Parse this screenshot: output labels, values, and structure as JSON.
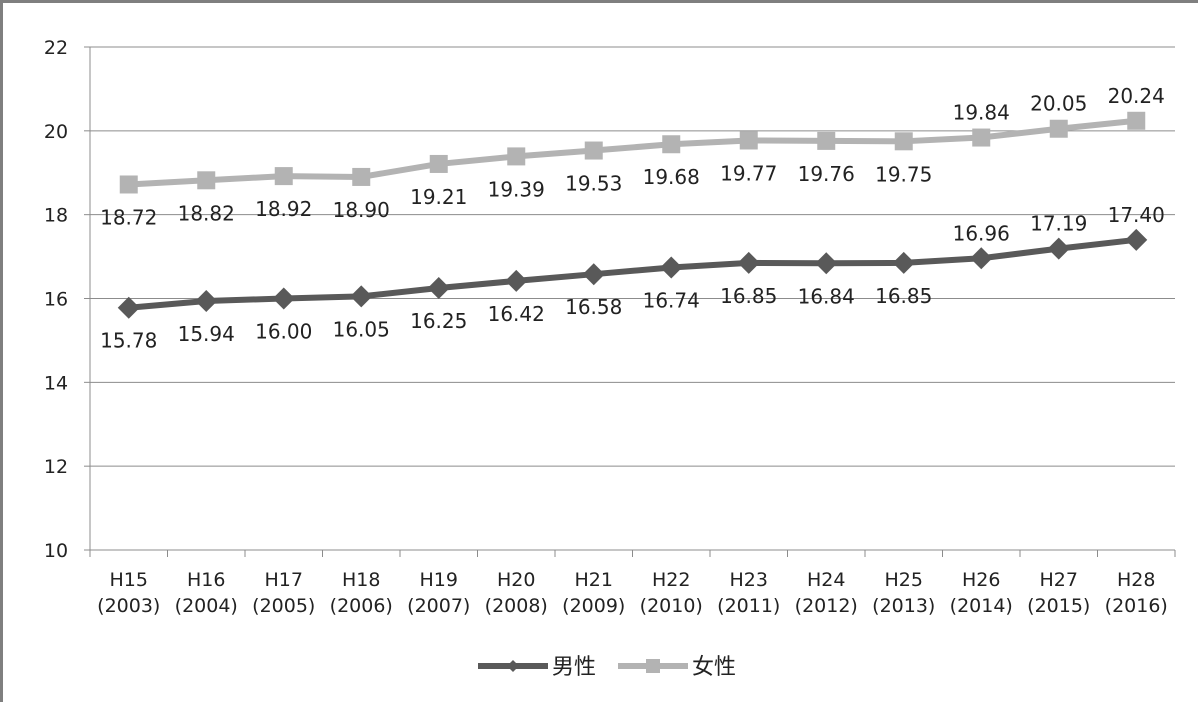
{
  "chart_data": {
    "type": "line",
    "categories": [
      [
        "H15",
        "(2003)"
      ],
      [
        "H16",
        "(2004)"
      ],
      [
        "H17",
        "(2005)"
      ],
      [
        "H18",
        "(2006)"
      ],
      [
        "H19",
        "(2007)"
      ],
      [
        "H20",
        "(2008)"
      ],
      [
        "H21",
        "(2009)"
      ],
      [
        "H22",
        "(2010)"
      ],
      [
        "H23",
        "(2011)"
      ],
      [
        "H24",
        "(2012)"
      ],
      [
        "H25",
        "(2013)"
      ],
      [
        "H26",
        "(2014)"
      ],
      [
        "H27",
        "(2015)"
      ],
      [
        "H28",
        "(2016)"
      ]
    ],
    "ylim": [
      10,
      22
    ],
    "yticks": [
      10,
      12,
      14,
      16,
      18,
      20,
      22
    ],
    "grid": true,
    "legend_position": "bottom",
    "series": [
      {
        "name": "男性",
        "marker": "diamond",
        "color": "#595959",
        "values": [
          15.78,
          15.94,
          16.0,
          16.05,
          16.25,
          16.42,
          16.58,
          16.74,
          16.85,
          16.84,
          16.85,
          16.96,
          17.19,
          17.4
        ],
        "labels": [
          "15.78",
          "15.94",
          "16.00",
          "16.05",
          "16.25",
          "16.42",
          "16.58",
          "16.74",
          "16.85",
          "16.84",
          "16.85",
          "16.96",
          "17.19",
          "17.40"
        ]
      },
      {
        "name": "女性",
        "marker": "square",
        "color": "#b3b3b3",
        "values": [
          18.72,
          18.82,
          18.92,
          18.9,
          19.21,
          19.39,
          19.53,
          19.68,
          19.77,
          19.76,
          19.75,
          19.84,
          20.05,
          20.24
        ],
        "labels": [
          "18.72",
          "18.82",
          "18.92",
          "18.90",
          "19.21",
          "19.39",
          "19.53",
          "19.68",
          "19.77",
          "19.76",
          "19.75",
          "19.84",
          "20.05",
          "20.24"
        ]
      }
    ]
  }
}
